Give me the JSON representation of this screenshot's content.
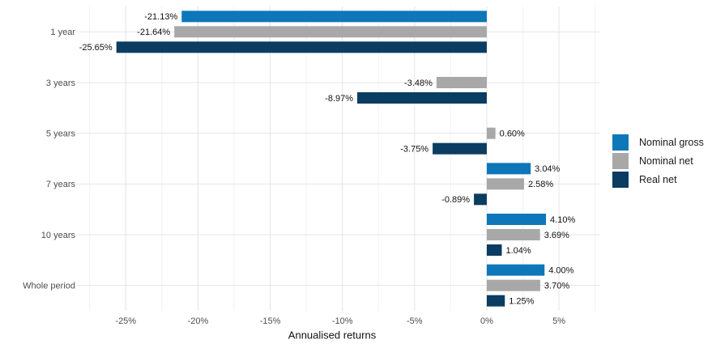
{
  "chart_data": {
    "type": "bar",
    "orientation": "horizontal",
    "title": "",
    "xlabel": "Annualised returns",
    "ylabel": "",
    "categories": [
      "1 year",
      "3 years",
      "5 years",
      "7 years",
      "10 years",
      "Whole period"
    ],
    "series": [
      {
        "name": "Nominal gross",
        "color": "#0d77b9",
        "values": [
          -21.13,
          null,
          null,
          3.04,
          4.1,
          4.0
        ],
        "labels": [
          "-21.13%",
          null,
          null,
          "3.04%",
          "4.10%",
          "4.00%"
        ]
      },
      {
        "name": "Nominal net",
        "color": "#a8a8a8",
        "values": [
          -21.64,
          -3.48,
          0.6,
          2.58,
          3.69,
          3.7
        ],
        "labels": [
          "-21.64%",
          "-3.48%",
          "0.60%",
          "2.58%",
          "3.69%",
          "3.70%"
        ]
      },
      {
        "name": "Real net",
        "color": "#0b3c61",
        "values": [
          -25.65,
          -8.97,
          -3.75,
          -0.89,
          1.04,
          1.25
        ],
        "labels": [
          "-25.65%",
          "-8.97%",
          "-3.75%",
          "-0.89%",
          "1.04%",
          "1.25%"
        ]
      }
    ],
    "x_ticks": [
      "-25%",
      "-20%",
      "-15%",
      "-10%",
      "-5%",
      "0%",
      "5%"
    ],
    "x_tick_values": [
      -25,
      -20,
      -15,
      -10,
      -5,
      0,
      5
    ],
    "xlim": [
      -28.1,
      7.8
    ],
    "grid": true,
    "legend_position": "right"
  },
  "colors": {
    "grid_major": "#e4e4e4",
    "grid_minor": "#f2f2f2",
    "axis_text": "#4d4d4d",
    "label_text": "#111111",
    "background": "#ffffff"
  }
}
